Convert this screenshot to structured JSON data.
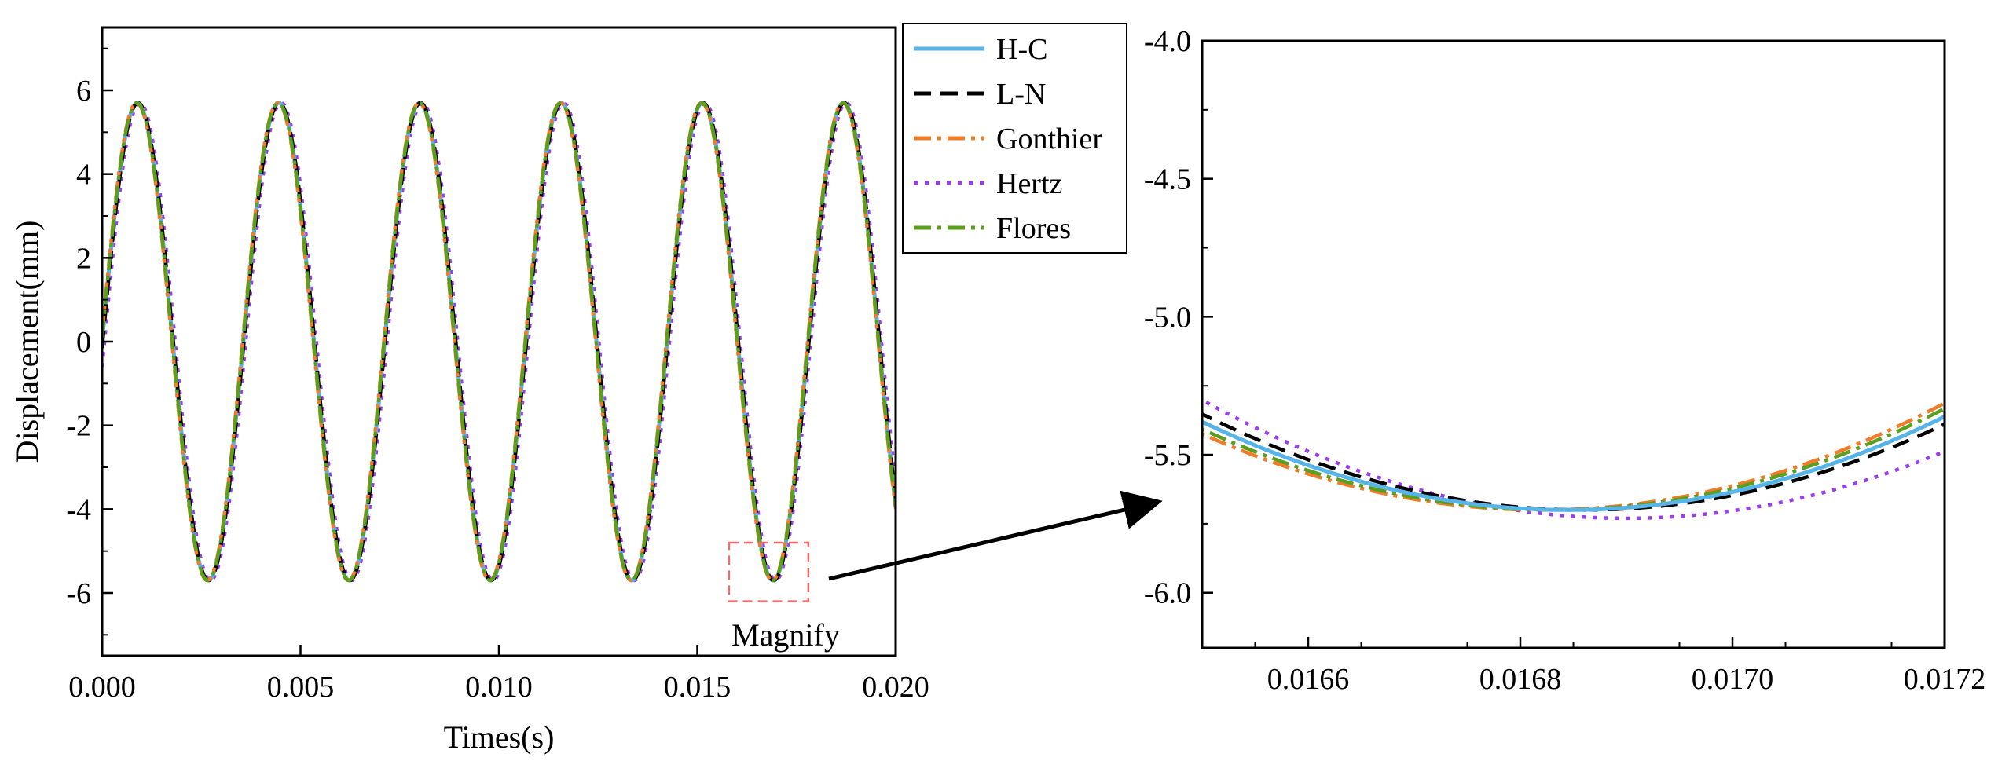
{
  "chart_data": [
    {
      "type": "line",
      "xlabel": "Times(s)",
      "ylabel": "Displacement(mm)",
      "xlim": [
        0,
        0.02
      ],
      "ylim": [
        -7.5,
        7.5
      ],
      "xticks": [
        0,
        0.005,
        0.01,
        0.015,
        0.02
      ],
      "xtick_labels": [
        "0.000",
        "0.005",
        "0.010",
        "0.015",
        "0.020"
      ],
      "yticks": [
        -6,
        -4,
        -2,
        0,
        2,
        4,
        6
      ],
      "ytick_labels": [
        "-6",
        "-4",
        "-2",
        "0",
        "2",
        "4",
        "6"
      ],
      "amplitude": 5.7,
      "period": 0.00356,
      "annotation": "Magnify",
      "magnify_box": {
        "x": [
          0.0158,
          0.0178
        ],
        "y": [
          -6.2,
          -4.8
        ]
      },
      "series": [
        {
          "name": "H-C",
          "color": "#56B4E9",
          "dash": "solid",
          "phase_shift": 0
        },
        {
          "name": "L-N",
          "color": "#000000",
          "dash": "dash",
          "phase_shift": 1.5e-05
        },
        {
          "name": "Gonthier",
          "color": "#F07C2A",
          "dash": "dashdot",
          "phase_shift": -2e-05
        },
        {
          "name": "Hertz",
          "color": "#9B3CF0",
          "dash": "dot",
          "phase_shift": 6e-05
        },
        {
          "name": "Flores",
          "color": "#5C9E1E",
          "dash": "dashdot",
          "phase_shift": -1e-05
        }
      ]
    },
    {
      "type": "line",
      "title": "",
      "xlim": [
        0.0165,
        0.0172
      ],
      "ylim": [
        -6.2,
        -4.0
      ],
      "xticks": [
        0.0166,
        0.0168,
        0.017,
        0.0172
      ],
      "xtick_labels": [
        "0.0166",
        "0.0168",
        "0.0170",
        "0.0172"
      ],
      "yticks": [
        -6.0,
        -5.5,
        -5.0,
        -4.5,
        -4.0
      ],
      "ytick_labels": [
        "-6.0",
        "-5.5",
        "-5.0",
        "-4.5",
        "-4.0"
      ],
      "series": [
        {
          "name": "H-C",
          "color": "#56B4E9",
          "dash": "solid",
          "min_x": 0.016845,
          "min_y": -5.7,
          "slope_left": 5560,
          "slope_right": 5560
        },
        {
          "name": "L-N",
          "color": "#000000",
          "dash": "dash",
          "min_x": 0.01686,
          "min_y": -5.7,
          "slope_left": 5560,
          "slope_right": 5560
        },
        {
          "name": "Gonthier",
          "color": "#F07C2A",
          "dash": "dashdot",
          "min_x": 0.01682,
          "min_y": -5.7,
          "slope_left": 5560,
          "slope_right": 5560
        },
        {
          "name": "Hertz",
          "color": "#9B3CF0",
          "dash": "dot",
          "min_x": 0.0169,
          "min_y": -5.73,
          "slope_left": 5560,
          "slope_right": 5560
        },
        {
          "name": "Flores",
          "color": "#5C9E1E",
          "dash": "dashdot",
          "min_x": 0.01683,
          "min_y": -5.7,
          "slope_left": 5560,
          "slope_right": 5560
        }
      ]
    }
  ],
  "legend": {
    "entries": [
      {
        "label": "H-C",
        "color": "#56B4E9",
        "dash": "solid"
      },
      {
        "label": "L-N",
        "color": "#000000",
        "dash": "dash"
      },
      {
        "label": "Gonthier",
        "color": "#F07C2A",
        "dash": "dashdot"
      },
      {
        "label": "Hertz",
        "color": "#9B3CF0",
        "dash": "dot"
      },
      {
        "label": "Flores",
        "color": "#5C9E1E",
        "dash": "dashdot"
      }
    ]
  }
}
